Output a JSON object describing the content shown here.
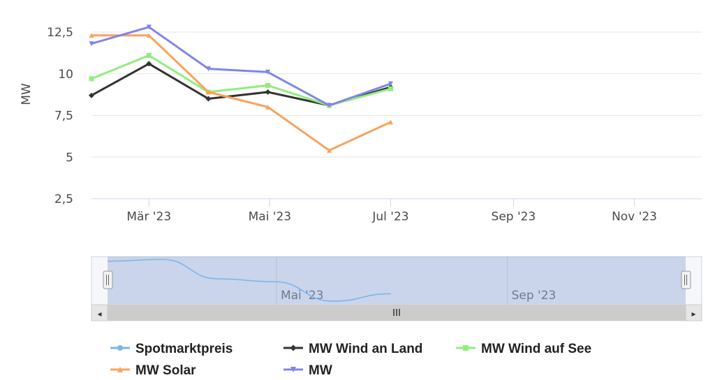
{
  "chart_data": {
    "type": "line",
    "ylabel": "MW",
    "yticks": [
      "2,5",
      "5",
      "7,5",
      "10",
      "12,5"
    ],
    "ytick_values": [
      2.5,
      5,
      7.5,
      10,
      12.5
    ],
    "ylim": [
      2.5,
      12.5
    ],
    "xlim": [
      "2023-01-31",
      "2023-12-05"
    ],
    "xticks": [
      {
        "label": "Mär '23",
        "date": "2023-03-01"
      },
      {
        "label": "Mai '23",
        "date": "2023-05-01"
      },
      {
        "label": "Jul '23",
        "date": "2023-07-01"
      },
      {
        "label": "Sep '23",
        "date": "2023-09-01"
      },
      {
        "label": "Nov '23",
        "date": "2023-11-01"
      }
    ],
    "x": [
      "2023-01-31",
      "2023-03-01",
      "2023-03-31",
      "2023-04-30",
      "2023-05-31",
      "2023-07-01"
    ],
    "series": [
      {
        "name": "MW Wind an Land",
        "color": "#333333",
        "marker": "diamond",
        "values": [
          8.7,
          10.6,
          8.5,
          8.9,
          8.1,
          9.2
        ]
      },
      {
        "name": "MW Wind auf See",
        "color": "#90ed7d",
        "marker": "square",
        "values": [
          9.7,
          11.1,
          8.9,
          9.3,
          8.1,
          9.1
        ]
      },
      {
        "name": "MW Solar",
        "color": "#f7a35c",
        "marker": "triangle",
        "values": [
          12.3,
          12.3,
          8.9,
          8.0,
          5.4,
          7.1
        ]
      },
      {
        "name": "MW",
        "color": "#8085e9",
        "marker": "triangle-down",
        "values": [
          11.8,
          12.8,
          10.3,
          10.1,
          8.1,
          9.4
        ]
      }
    ],
    "grid": true,
    "legend_position": "bottom"
  },
  "navigator": {
    "series_name": "Spotmarktpreis",
    "color": "#7cb5ec",
    "labels": [
      {
        "label": "Mai '23",
        "date": "2023-05-01"
      },
      {
        "label": "Sep '23",
        "date": "2023-09-01"
      }
    ],
    "values": [
      12.3,
      12.5,
      10.4,
      10.1,
      8.0,
      8.8
    ]
  },
  "legend": [
    {
      "label": "Spotmarktpreis",
      "color": "#7cb5ec",
      "marker": "circle"
    },
    {
      "label": "MW Wind an Land",
      "color": "#333333",
      "marker": "diamond"
    },
    {
      "label": "MW Wind auf See",
      "color": "#90ed7d",
      "marker": "square"
    },
    {
      "label": "MW Solar",
      "color": "#f7a35c",
      "marker": "triangle"
    },
    {
      "label": "MW",
      "color": "#8085e9",
      "marker": "triangle-down"
    }
  ],
  "scrollbar": {
    "left_arrow": "◂",
    "right_arrow": "▸",
    "grip": "III",
    "handle_grip": "II"
  }
}
